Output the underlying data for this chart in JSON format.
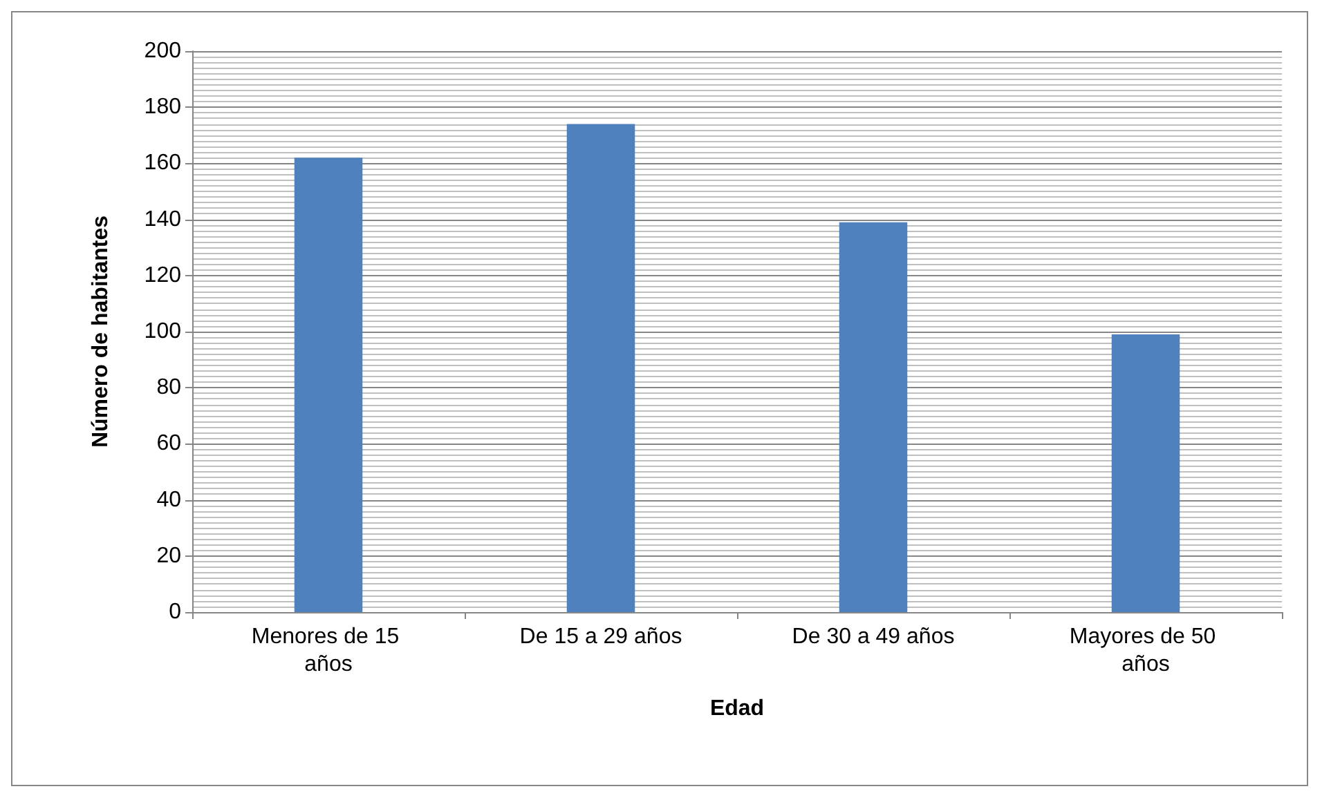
{
  "chart_data": {
    "type": "bar",
    "xlabel": "Edad",
    "ylabel": "Número de habitantes",
    "categories": [
      "Menores de 15 años",
      "De 15 a 29 años",
      "De 30 a 49 años",
      "Mayores de 50 años"
    ],
    "values": [
      162,
      174,
      139,
      99
    ],
    "color": "#4f81bd",
    "ylim": [
      0,
      200
    ],
    "yticks": [
      0,
      20,
      40,
      60,
      80,
      100,
      120,
      140,
      160,
      180,
      200
    ],
    "grid": true
  }
}
